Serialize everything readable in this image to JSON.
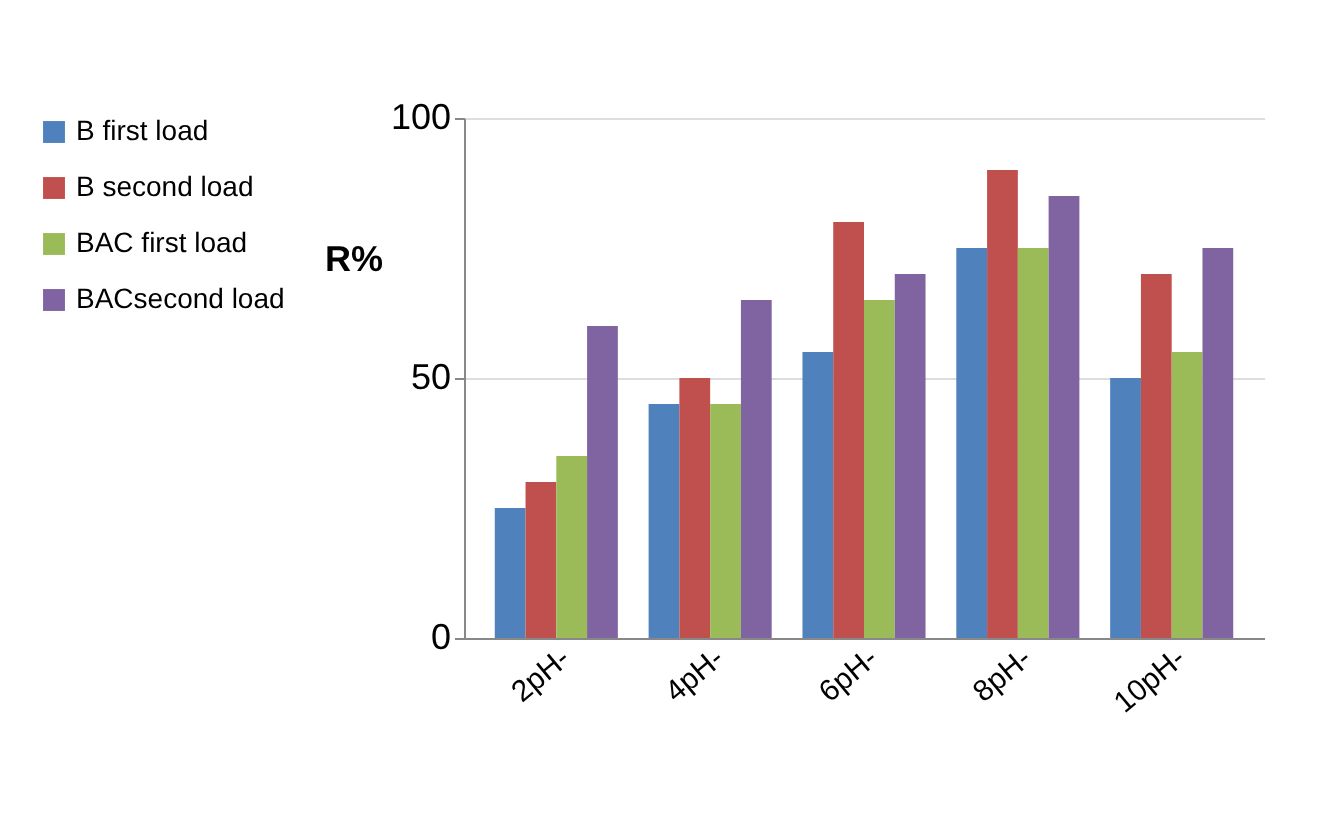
{
  "chart_data": {
    "type": "bar",
    "ylabel": "R%",
    "categories": [
      "2pH-",
      "4pH-",
      "6pH-",
      "8pH-",
      "10pH-"
    ],
    "series": [
      {
        "name": "B first load",
        "color": "#4f81bd",
        "values": [
          25,
          45,
          55,
          75,
          50
        ]
      },
      {
        "name": "B second load",
        "color": "#c0504d",
        "values": [
          30,
          50,
          80,
          90,
          70
        ]
      },
      {
        "name": "BAC first load",
        "color": "#9bbb59",
        "values": [
          35,
          45,
          65,
          75,
          55
        ]
      },
      {
        "name": "BACsecond load",
        "color": "#8064a2",
        "values": [
          60,
          65,
          70,
          85,
          75
        ]
      }
    ],
    "ylim": [
      0,
      100
    ],
    "yticks": [
      0,
      50,
      100
    ],
    "grid": "y",
    "legend": "left"
  }
}
